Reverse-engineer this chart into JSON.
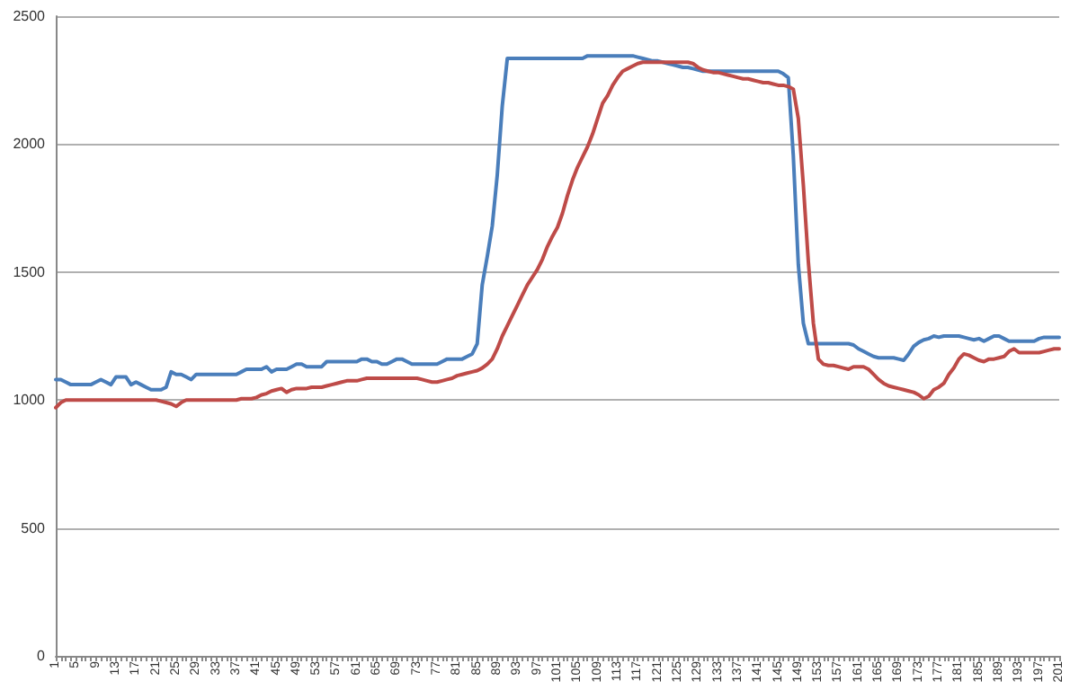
{
  "chart_data": {
    "type": "line",
    "categories": [
      "1",
      null,
      null,
      null,
      "5",
      null,
      null,
      null,
      "9",
      null,
      null,
      null,
      "13",
      null,
      null,
      null,
      "17",
      null,
      null,
      null,
      "21",
      null,
      null,
      null,
      "25",
      null,
      null,
      null,
      "29",
      null,
      null,
      null,
      "33",
      null,
      null,
      null,
      "37",
      null,
      null,
      null,
      "41",
      null,
      null,
      null,
      "45",
      null,
      null,
      null,
      "49",
      null,
      null,
      null,
      "53",
      null,
      null,
      null,
      "57",
      null,
      null,
      null,
      "61",
      null,
      null,
      null,
      "65",
      null,
      null,
      null,
      "69",
      null,
      null,
      null,
      "73",
      null,
      null,
      null,
      "77",
      null,
      null,
      null,
      "81",
      null,
      null,
      null,
      "85",
      null,
      null,
      null,
      "89",
      null,
      null,
      null,
      "93",
      null,
      null,
      null,
      "97",
      null,
      null,
      null,
      "101",
      null,
      null,
      null,
      "105",
      null,
      null,
      null,
      "109",
      null,
      null,
      null,
      "113",
      null,
      null,
      null,
      "117",
      null,
      null,
      null,
      "121",
      null,
      null,
      null,
      "125",
      null,
      null,
      null,
      "129",
      null,
      null,
      null,
      "133",
      null,
      null,
      null,
      "137",
      null,
      null,
      null,
      "141",
      null,
      null,
      null,
      "145",
      null,
      null,
      null,
      "149",
      null,
      null,
      null,
      "153",
      null,
      null,
      null,
      "157",
      null,
      null,
      null,
      "161",
      null,
      null,
      null,
      "165",
      null,
      null,
      null,
      "169",
      null,
      null,
      null,
      "173",
      null,
      null,
      null,
      "177",
      null,
      null,
      null,
      "181",
      null,
      null,
      null,
      "185",
      null,
      null,
      null,
      "189",
      null,
      null,
      null,
      "193",
      null,
      null,
      null,
      "197",
      null,
      null,
      null,
      "201"
    ],
    "series": [
      {
        "color": "#4a7ebb",
        "values": [
          1080,
          1080,
          1070,
          1060,
          1060,
          1060,
          1060,
          1060,
          1070,
          1080,
          1070,
          1060,
          1090,
          1090,
          1090,
          1060,
          1070,
          1060,
          1050,
          1040,
          1040,
          1040,
          1050,
          1110,
          1100,
          1100,
          1090,
          1080,
          1100,
          1100,
          1100,
          1100,
          1100,
          1100,
          1100,
          1100,
          1100,
          1110,
          1120,
          1120,
          1120,
          1120,
          1130,
          1110,
          1120,
          1120,
          1120,
          1130,
          1140,
          1140,
          1130,
          1130,
          1130,
          1130,
          1150,
          1150,
          1150,
          1150,
          1150,
          1150,
          1150,
          1160,
          1160,
          1150,
          1150,
          1140,
          1140,
          1150,
          1160,
          1160,
          1150,
          1140,
          1140,
          1140,
          1140,
          1140,
          1140,
          1150,
          1160,
          1160,
          1160,
          1160,
          1170,
          1180,
          1220,
          1450,
          1560,
          1680,
          1880,
          2150,
          2335,
          2335,
          2335,
          2335,
          2335,
          2335,
          2335,
          2335,
          2335,
          2335,
          2335,
          2335,
          2335,
          2335,
          2335,
          2335,
          2345,
          2345,
          2345,
          2345,
          2345,
          2345,
          2345,
          2345,
          2345,
          2345,
          2340,
          2335,
          2330,
          2325,
          2325,
          2320,
          2315,
          2310,
          2305,
          2300,
          2300,
          2295,
          2290,
          2285,
          2285,
          2285,
          2285,
          2285,
          2285,
          2285,
          2285,
          2285,
          2285,
          2285,
          2285,
          2285,
          2285,
          2285,
          2285,
          2275,
          2260,
          1955,
          1530,
          1300,
          1220,
          1220,
          1220,
          1220,
          1220,
          1220,
          1220,
          1220,
          1220,
          1215,
          1200,
          1190,
          1180,
          1170,
          1165,
          1165,
          1165,
          1165,
          1160,
          1155,
          1180,
          1210,
          1225,
          1235,
          1240,
          1250,
          1245,
          1250,
          1250,
          1250,
          1250,
          1245,
          1240,
          1235,
          1240,
          1230,
          1240,
          1250,
          1250,
          1240,
          1230,
          1230,
          1230,
          1230,
          1230,
          1230,
          1240,
          1245,
          1245,
          1245,
          1245
        ]
      },
      {
        "color": "#be4b48",
        "values": [
          970,
          990,
          1000,
          1000,
          1000,
          1000,
          1000,
          1000,
          1000,
          1000,
          1000,
          1000,
          1000,
          1000,
          1000,
          1000,
          1000,
          1000,
          1000,
          1000,
          1000,
          995,
          990,
          985,
          975,
          990,
          1000,
          1000,
          1000,
          1000,
          1000,
          1000,
          1000,
          1000,
          1000,
          1000,
          1000,
          1005,
          1005,
          1005,
          1010,
          1020,
          1025,
          1035,
          1040,
          1045,
          1030,
          1040,
          1045,
          1045,
          1045,
          1050,
          1050,
          1050,
          1055,
          1060,
          1065,
          1070,
          1075,
          1075,
          1075,
          1080,
          1085,
          1085,
          1085,
          1085,
          1085,
          1085,
          1085,
          1085,
          1085,
          1085,
          1085,
          1080,
          1075,
          1070,
          1070,
          1075,
          1080,
          1085,
          1095,
          1100,
          1105,
          1110,
          1115,
          1125,
          1140,
          1160,
          1200,
          1250,
          1290,
          1330,
          1370,
          1410,
          1450,
          1480,
          1510,
          1550,
          1600,
          1640,
          1675,
          1730,
          1800,
          1860,
          1910,
          1950,
          1990,
          2040,
          2100,
          2160,
          2190,
          2230,
          2260,
          2285,
          2295,
          2305,
          2315,
          2320,
          2320,
          2320,
          2320,
          2320,
          2320,
          2320,
          2320,
          2320,
          2320,
          2315,
          2300,
          2290,
          2285,
          2280,
          2280,
          2275,
          2270,
          2265,
          2260,
          2255,
          2255,
          2250,
          2245,
          2240,
          2240,
          2235,
          2230,
          2230,
          2225,
          2215,
          2100,
          1840,
          1540,
          1300,
          1160,
          1140,
          1135,
          1135,
          1130,
          1125,
          1120,
          1130,
          1130,
          1130,
          1120,
          1100,
          1080,
          1065,
          1055,
          1050,
          1045,
          1040,
          1035,
          1030,
          1020,
          1005,
          1015,
          1040,
          1050,
          1065,
          1100,
          1125,
          1160,
          1180,
          1175,
          1165,
          1155,
          1150,
          1160,
          1160,
          1165,
          1170,
          1190,
          1200,
          1185,
          1185,
          1185,
          1185,
          1185,
          1190,
          1195,
          1200,
          1200
        ]
      }
    ],
    "ylim": [
      0,
      2500
    ],
    "yticks": [
      0,
      500,
      1000,
      1500,
      2000,
      2500
    ],
    "grid": "y",
    "marker": "none",
    "line_style": "solid"
  }
}
